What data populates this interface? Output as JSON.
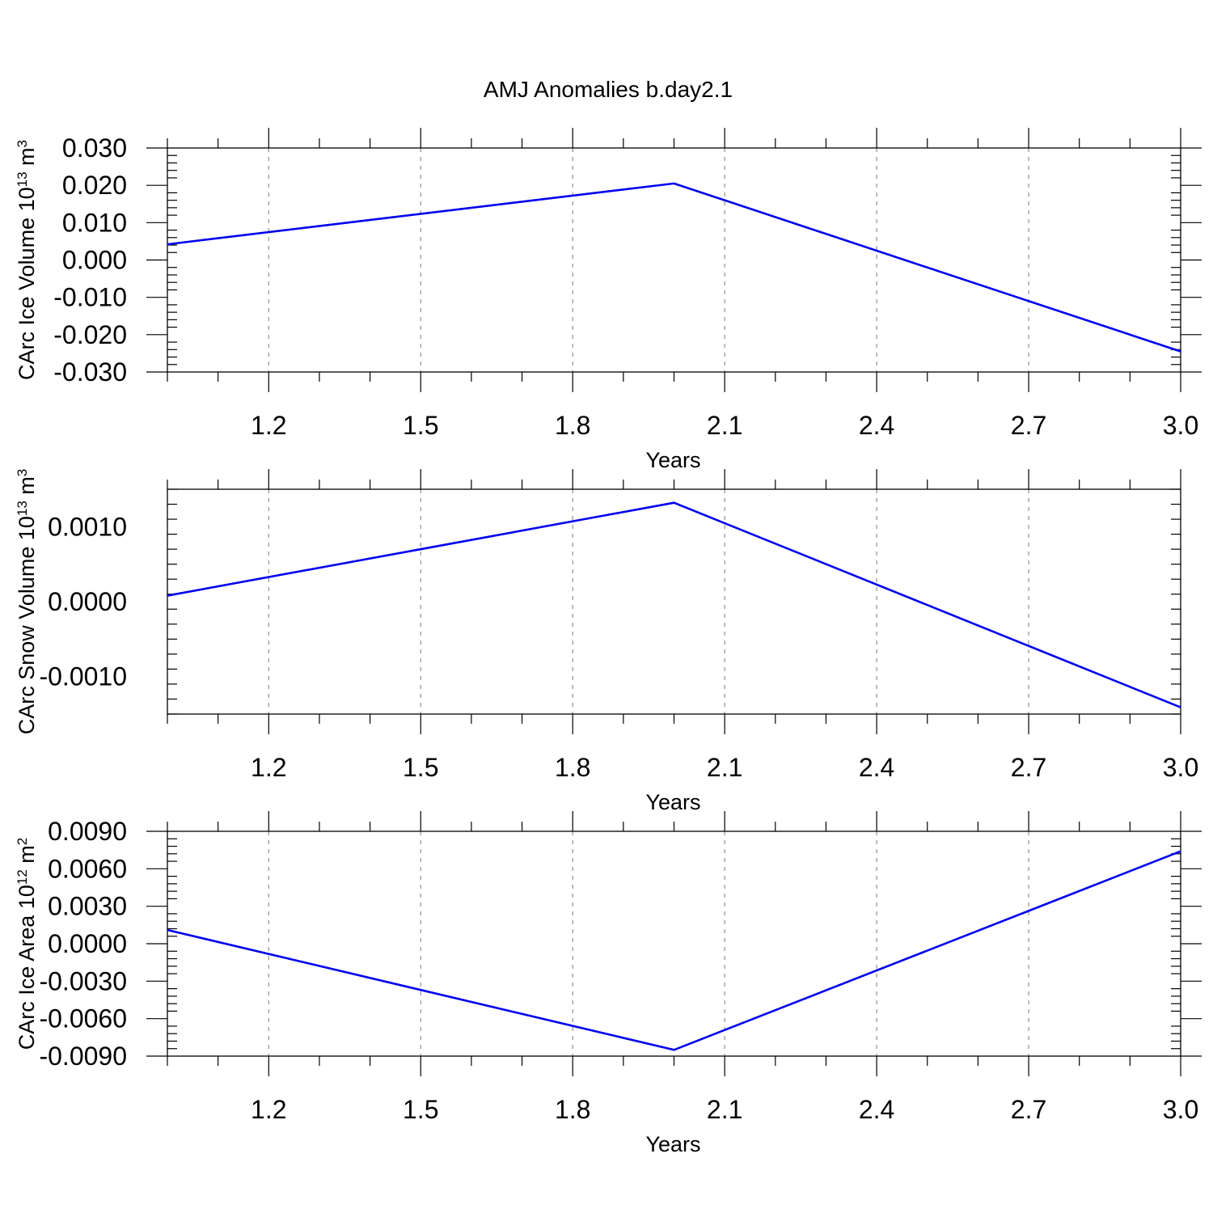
{
  "figure_title": "AMJ Anomalies b.day2.1",
  "colors": {
    "series": "#0000ee",
    "grid": "#999999",
    "axes": "#000000"
  },
  "chart_data": [
    {
      "type": "line",
      "xlabel": "Years",
      "ylabel": {
        "text": "CArc Ice Volume 10",
        "sup": "13",
        "unit": " m",
        "unit_sup": "3"
      },
      "xlim": [
        1.0,
        3.0
      ],
      "ylim": [
        -0.03,
        0.03
      ],
      "xticks": [
        1.2,
        1.5,
        1.8,
        2.1,
        2.4,
        2.7,
        3.0
      ],
      "xtick_labels": [
        "1.2",
        "1.5",
        "1.8",
        "2.1",
        "2.4",
        "2.7",
        "3.0"
      ],
      "yticks": [
        0.03,
        0.02,
        0.01,
        0.0,
        -0.01,
        -0.02,
        -0.03
      ],
      "ytick_labels": [
        "0.030",
        "0.020",
        "0.010",
        "0.000",
        "-0.010",
        "-0.020",
        "-0.030"
      ],
      "grid": "x-dashed",
      "series": [
        {
          "x": [
            1.0,
            2.0,
            3.0
          ],
          "y": [
            0.0042,
            0.0205,
            -0.0245
          ]
        }
      ]
    },
    {
      "type": "line",
      "xlabel": "Years",
      "ylabel": {
        "text": "CArc Snow Volume 10",
        "sup": "13",
        "unit": " m",
        "unit_sup": "3"
      },
      "xlim": [
        1.0,
        3.0
      ],
      "ylim": [
        -0.0015,
        0.0015
      ],
      "xticks": [
        1.2,
        1.5,
        1.8,
        2.1,
        2.4,
        2.7,
        3.0
      ],
      "xtick_labels": [
        "1.2",
        "1.5",
        "1.8",
        "2.1",
        "2.4",
        "2.7",
        "3.0"
      ],
      "yticks": [
        0.001,
        0.0,
        -0.001
      ],
      "ytick_labels": [
        "0.0010",
        "0.0000",
        "-0.0010"
      ],
      "grid": "x-dashed",
      "series": [
        {
          "x": [
            1.0,
            2.0,
            3.0
          ],
          "y": [
            8e-05,
            0.00132,
            -0.00141
          ]
        }
      ]
    },
    {
      "type": "line",
      "xlabel": "Years",
      "ylabel": {
        "text": "CArc Ice Area 10",
        "sup": "12",
        "unit": " m",
        "unit_sup": "2"
      },
      "xlim": [
        1.0,
        3.0
      ],
      "ylim": [
        -0.009,
        0.009
      ],
      "xticks": [
        1.2,
        1.5,
        1.8,
        2.1,
        2.4,
        2.7,
        3.0
      ],
      "xtick_labels": [
        "1.2",
        "1.5",
        "1.8",
        "2.1",
        "2.4",
        "2.7",
        "3.0"
      ],
      "yticks": [
        0.009,
        0.006,
        0.003,
        0.0,
        -0.003,
        -0.006,
        -0.009
      ],
      "ytick_labels": [
        "0.0090",
        "0.0060",
        "0.0030",
        "0.0000",
        "-0.0030",
        "-0.0060",
        "-0.0090"
      ],
      "grid": "x-dashed",
      "series": [
        {
          "x": [
            1.0,
            2.0,
            3.0
          ],
          "y": [
            0.0011,
            -0.0085,
            0.0074
          ]
        }
      ]
    }
  ]
}
